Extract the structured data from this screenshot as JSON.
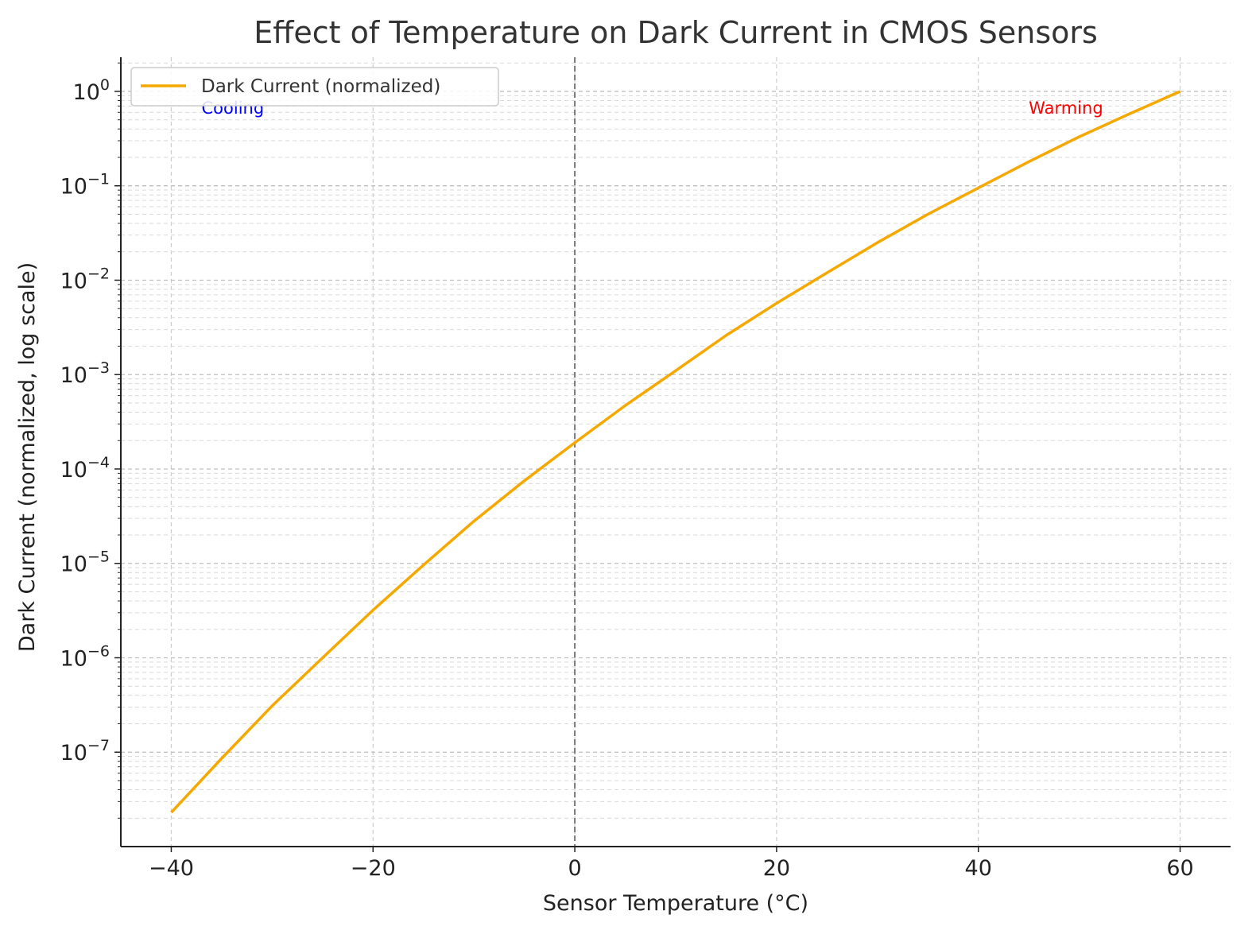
{
  "chart_data": {
    "type": "line",
    "title": "Effect of Temperature on Dark Current in CMOS Sensors",
    "xlabel": "Sensor Temperature (°C)",
    "ylabel": "Dark Current (normalized, log scale)",
    "x_scale": "linear",
    "y_scale": "log",
    "xlim": [
      -45,
      65
    ],
    "ylim": [
      1e-08,
      2.3
    ],
    "x_ticks": [
      -40,
      -20,
      0,
      20,
      40,
      60
    ],
    "x_tick_labels": [
      "−40",
      "−20",
      "0",
      "20",
      "40",
      "60"
    ],
    "y_ticks": [
      {
        "value": 1.0,
        "base": "10",
        "exp": "0"
      },
      {
        "value": 0.1,
        "base": "10",
        "exp": "−1"
      },
      {
        "value": 0.01,
        "base": "10",
        "exp": "−2"
      },
      {
        "value": 0.001,
        "base": "10",
        "exp": "−3"
      },
      {
        "value": 0.0001,
        "base": "10",
        "exp": "−4"
      },
      {
        "value": 1e-05,
        "base": "10",
        "exp": "−5"
      },
      {
        "value": 1e-06,
        "base": "10",
        "exp": "−6"
      },
      {
        "value": 1e-07,
        "base": "10",
        "exp": "−7"
      }
    ],
    "grid": true,
    "legend_position": "top-left",
    "series": [
      {
        "name": "Dark Current (normalized)",
        "color": "#f5a800",
        "x": [
          -40,
          -35,
          -30,
          -25,
          -20,
          -15,
          -10,
          -5,
          0,
          5,
          10,
          15,
          20,
          25,
          30,
          35,
          40,
          45,
          50,
          55,
          60
        ],
        "y": [
          2.3e-08,
          8.6e-08,
          3.1e-07,
          1e-06,
          3.2e-06,
          9.6e-06,
          2.8e-05,
          7.5e-05,
          0.00019,
          0.00047,
          0.0011,
          0.0026,
          0.0057,
          0.012,
          0.025,
          0.05,
          0.095,
          0.18,
          0.33,
          0.58,
          1.0
        ]
      }
    ],
    "reference_lines": [
      {
        "axis": "x",
        "value": 0,
        "style": "dashed",
        "color": "#777777"
      }
    ],
    "annotations": [
      {
        "text": "Cooling",
        "x": -37,
        "y": 0.58,
        "color": "#0000ff"
      },
      {
        "text": "Warming",
        "x": 45,
        "y": 0.58,
        "color": "#ff0000"
      }
    ]
  }
}
